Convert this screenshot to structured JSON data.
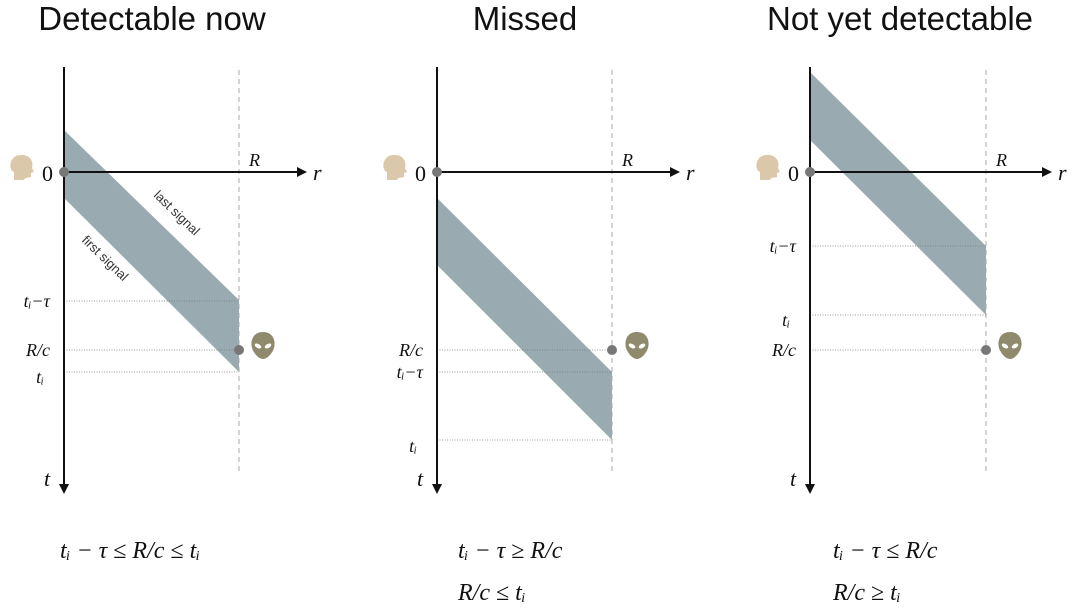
{
  "panels": [
    {
      "title": "Detectable now",
      "axis": {
        "r": "r",
        "t": "t",
        "origin": "0",
        "R": "R"
      },
      "ticks": {
        "t_tau": "tᵢ−τ",
        "rc": "R/c",
        "ti": "tᵢ"
      },
      "signal_labels": {
        "last": "last signal",
        "first": "first signal"
      },
      "conditions": [
        "tᵢ − τ ≤ R/c ≤ tᵢ"
      ]
    },
    {
      "title": "Missed",
      "axis": {
        "r": "r",
        "t": "t",
        "origin": "0",
        "R": "R"
      },
      "ticks": {
        "rc": "R/c",
        "t_tau": "tᵢ−τ",
        "ti": "tᵢ"
      },
      "conditions": [
        "tᵢ − τ ≥ R/c",
        "R/c ≤ tᵢ"
      ]
    },
    {
      "title": "Not yet detectable",
      "axis": {
        "r": "r",
        "t": "t",
        "origin": "0",
        "R": "R"
      },
      "ticks": {
        "t_tau": "tᵢ−τ",
        "ti": "tᵢ",
        "rc": "R/c"
      },
      "conditions": [
        "tᵢ − τ ≤ R/c",
        "R/c ≥ tᵢ"
      ]
    }
  ],
  "colors": {
    "band": "#99abb1",
    "human": "#dbc7a9",
    "alien": "#8e8a6b",
    "dot": "#777777"
  },
  "icons": {
    "observer": "human-head-icon",
    "source": "alien-head-icon"
  }
}
